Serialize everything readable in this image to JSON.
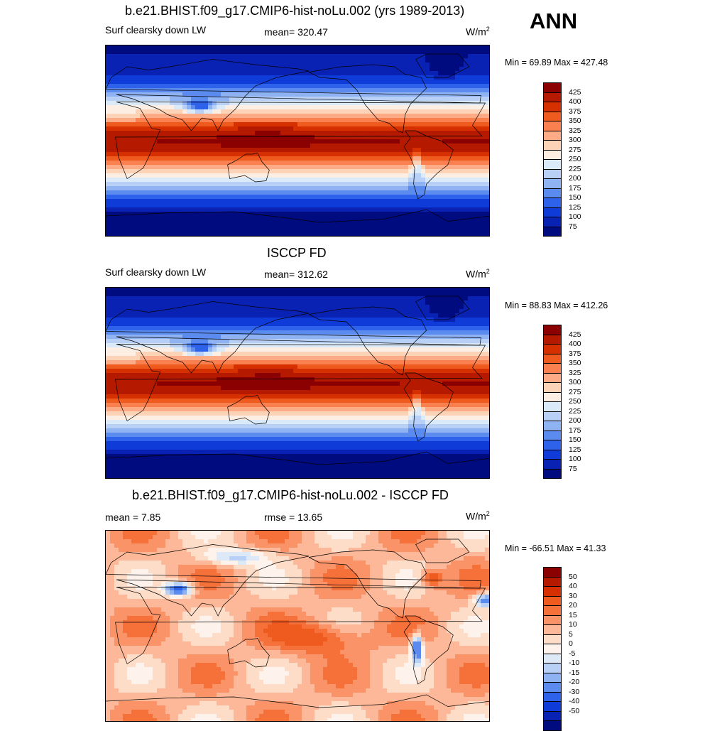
{
  "season": "ANN",
  "panels": [
    {
      "title": "b.e21.BHIST.f09_g17.CMIP6-hist-noLu.002 (yrs 1989-2013)",
      "left_label": "Surf clearsky down LW",
      "center_label": "mean= 320.47",
      "units_base": "W/m",
      "units_exp": "2",
      "minmax": "Min =  69.89 Max = 427.48",
      "kind": "abs",
      "colorbar": {
        "colors": [
          "#8b0000",
          "#b51a00",
          "#d73000",
          "#ef5a1f",
          "#fa8050",
          "#fcab86",
          "#fdd3b8",
          "#fdeee3",
          "#dbeaf8",
          "#b8d0f5",
          "#8fb2f2",
          "#5b8bef",
          "#2f62eb",
          "#0f3bd8",
          "#0a22b3",
          "#000b80"
        ],
        "labels": [
          "425",
          "400",
          "375",
          "350",
          "325",
          "300",
          "275",
          "250",
          "225",
          "200",
          "175",
          "150",
          "125",
          "100",
          "75"
        ]
      }
    },
    {
      "title": "ISCCP FD",
      "left_label": "Surf clearsky down LW",
      "center_label": "mean= 312.62",
      "units_base": "W/m",
      "units_exp": "2",
      "minmax": "Min =  88.83 Max = 412.26",
      "kind": "abs",
      "colorbar": {
        "colors": [
          "#8b0000",
          "#b51a00",
          "#d73000",
          "#ef5a1f",
          "#fa8050",
          "#fcab86",
          "#fdd3b8",
          "#fdeee3",
          "#dbeaf8",
          "#b8d0f5",
          "#8fb2f2",
          "#5b8bef",
          "#2f62eb",
          "#0f3bd8",
          "#0a22b3",
          "#000b80"
        ],
        "labels": [
          "425",
          "400",
          "375",
          "350",
          "325",
          "300",
          "275",
          "250",
          "225",
          "200",
          "175",
          "150",
          "125",
          "100",
          "75"
        ]
      }
    },
    {
      "title": "b.e21.BHIST.f09_g17.CMIP6-hist-noLu.002 - ISCCP FD",
      "left_label": "mean =   7.85",
      "center_label": "rmse =  13.65",
      "units_base": "W/m",
      "units_exp": "2",
      "minmax": "Min = -66.51 Max =  41.33",
      "kind": "diff",
      "colorbar": {
        "colors": [
          "#8b0000",
          "#b51a00",
          "#d73000",
          "#ef5a1f",
          "#f6703a",
          "#fa9468",
          "#fcb898",
          "#fddcc8",
          "#fdf3ec",
          "#dde9f7",
          "#b8d0f5",
          "#8fb2f2",
          "#5b8bef",
          "#2f62eb",
          "#0f3bd8",
          "#0a22b3",
          "#000b80"
        ],
        "labels": [
          "50",
          "40",
          "30",
          "20",
          "15",
          "10",
          "5",
          "0",
          "-5",
          "-10",
          "-15",
          "-20",
          "-30",
          "-40",
          "-50"
        ]
      }
    }
  ]
}
